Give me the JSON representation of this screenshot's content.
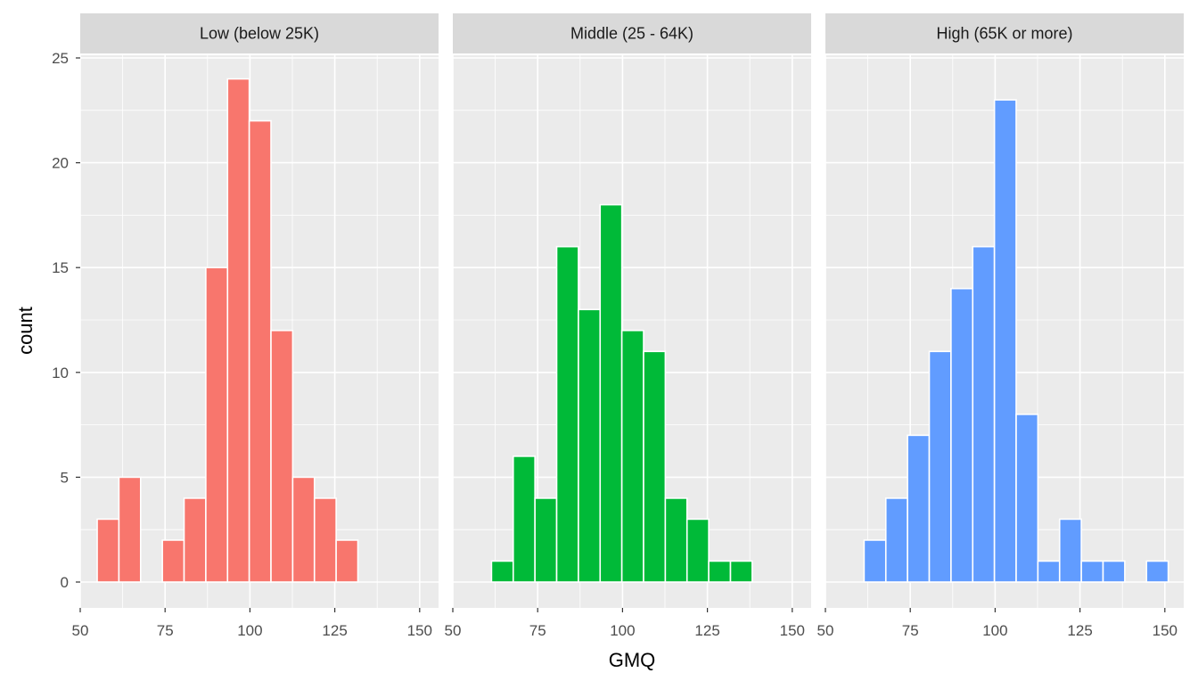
{
  "chart_data": {
    "type": "bar",
    "subtype": "faceted histogram",
    "xlabel": "GMQ",
    "ylabel": "count",
    "xlim": [
      50,
      150
    ],
    "ylim": [
      0,
      25
    ],
    "x_ticks": [
      "50",
      "75",
      "100",
      "125",
      "150"
    ],
    "y_ticks": [
      "0",
      "5",
      "10",
      "15",
      "20",
      "25"
    ],
    "grid": true,
    "legend": "none",
    "facets": [
      {
        "label": "Low (below 25K)",
        "color": "#F8766D",
        "bins": [
          {
            "x": [
              55,
              61.4
            ],
            "count": 3
          },
          {
            "x": [
              61.4,
              67.8
            ],
            "count": 5
          },
          {
            "x": [
              74.2,
              80.6
            ],
            "count": 2
          },
          {
            "x": [
              80.6,
              87
            ],
            "count": 4
          },
          {
            "x": [
              87,
              93.4
            ],
            "count": 15
          },
          {
            "x": [
              93.4,
              99.8
            ],
            "count": 24
          },
          {
            "x": [
              99.8,
              106.2
            ],
            "count": 22
          },
          {
            "x": [
              106.2,
              112.6
            ],
            "count": 12
          },
          {
            "x": [
              112.6,
              119
            ],
            "count": 5
          },
          {
            "x": [
              119,
              125.4
            ],
            "count": 4
          },
          {
            "x": [
              125.4,
              131.8
            ],
            "count": 2
          }
        ]
      },
      {
        "label": "Middle (25 - 64K)",
        "color": "#00BA38",
        "bins": [
          {
            "x": [
              61.4,
              67.8
            ],
            "count": 1
          },
          {
            "x": [
              67.8,
              74.2
            ],
            "count": 6
          },
          {
            "x": [
              74.2,
              80.6
            ],
            "count": 4
          },
          {
            "x": [
              80.6,
              87
            ],
            "count": 16
          },
          {
            "x": [
              87,
              93.4
            ],
            "count": 13
          },
          {
            "x": [
              93.4,
              99.8
            ],
            "count": 18
          },
          {
            "x": [
              99.8,
              106.2
            ],
            "count": 12
          },
          {
            "x": [
              106.2,
              112.6
            ],
            "count": 11
          },
          {
            "x": [
              112.6,
              119
            ],
            "count": 4
          },
          {
            "x": [
              119,
              125.4
            ],
            "count": 3
          },
          {
            "x": [
              125.4,
              131.8
            ],
            "count": 1
          },
          {
            "x": [
              131.8,
              138.2
            ],
            "count": 1
          }
        ]
      },
      {
        "label": "High (65K or more)",
        "color": "#619CFF",
        "bins": [
          {
            "x": [
              61.4,
              67.8
            ],
            "count": 2
          },
          {
            "x": [
              67.8,
              74.2
            ],
            "count": 4
          },
          {
            "x": [
              74.2,
              80.6
            ],
            "count": 7
          },
          {
            "x": [
              80.6,
              87
            ],
            "count": 11
          },
          {
            "x": [
              87,
              93.4
            ],
            "count": 14
          },
          {
            "x": [
              93.4,
              99.8
            ],
            "count": 16
          },
          {
            "x": [
              99.8,
              106.2
            ],
            "count": 23
          },
          {
            "x": [
              106.2,
              112.6
            ],
            "count": 8
          },
          {
            "x": [
              112.6,
              119
            ],
            "count": 1
          },
          {
            "x": [
              119,
              125.4
            ],
            "count": 3
          },
          {
            "x": [
              125.4,
              131.8
            ],
            "count": 1
          },
          {
            "x": [
              131.8,
              138.2
            ],
            "count": 1
          },
          {
            "x": [
              144.6,
              151
            ],
            "count": 1
          }
        ]
      }
    ]
  }
}
